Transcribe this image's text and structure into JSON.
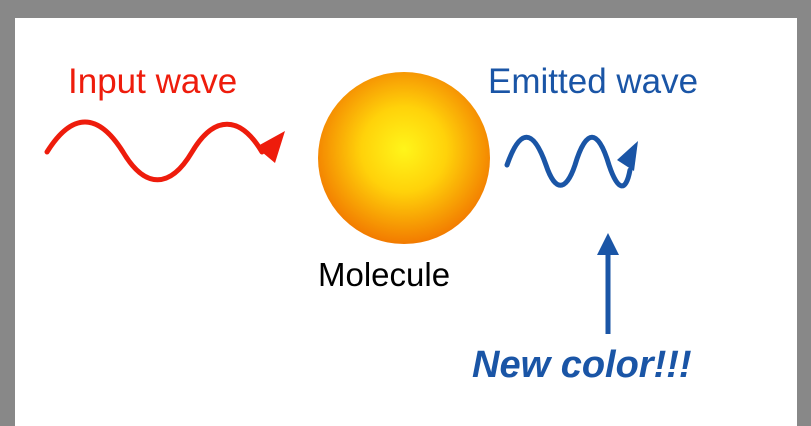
{
  "labels": {
    "input_wave": "Input wave",
    "emitted_wave": "Emitted wave",
    "molecule": "Molecule",
    "new_color": "New color!!!"
  },
  "colors": {
    "input_wave": "#ee1c0c",
    "emitted_wave": "#1a55a6",
    "molecule_center": "#fff51a",
    "molecule_edge": "#f27a00",
    "frame": "#888888",
    "background": "#ffffff"
  },
  "icons": {
    "input_wave": "wave-arrow-icon",
    "emitted_wave": "wave-arrow-icon",
    "molecule": "sphere-icon",
    "pointer": "up-arrow-icon"
  }
}
